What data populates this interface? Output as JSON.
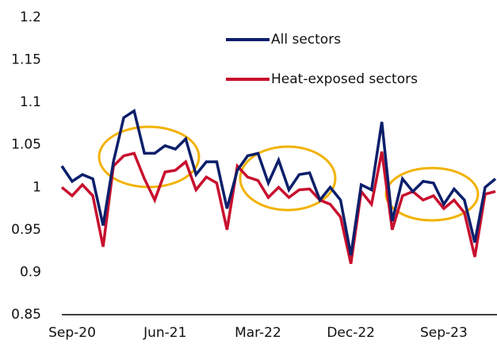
{
  "chart_data": {
    "type": "line",
    "categories": [
      null,
      "Sep-20",
      null,
      null,
      null,
      null,
      null,
      null,
      null,
      null,
      "Jun-21",
      null,
      null,
      null,
      null,
      null,
      null,
      null,
      null,
      "Mar-22",
      null,
      null,
      null,
      null,
      null,
      null,
      null,
      null,
      "Dec-22",
      null,
      null,
      null,
      null,
      null,
      null,
      null,
      null,
      "Sep-23",
      null,
      null,
      null,
      null,
      null
    ],
    "series": [
      {
        "name": "All sectors",
        "color": "#0c1f6b",
        "values": [
          1.025,
          1.007,
          1.015,
          1.01,
          0.955,
          1.03,
          1.082,
          1.09,
          1.04,
          1.04,
          1.049,
          1.045,
          1.057,
          1.015,
          1.03,
          1.03,
          0.975,
          1.02,
          1.037,
          1.04,
          1.005,
          1.032,
          0.997,
          1.015,
          1.017,
          0.985,
          1.0,
          0.985,
          0.92,
          1.003,
          0.997,
          1.077,
          0.96,
          1.01,
          0.995,
          1.007,
          1.005,
          0.98,
          0.998,
          0.985,
          0.935,
          1.0,
          1.01
        ]
      },
      {
        "name": "Heat-exposed sectors",
        "color": "#c8102e",
        "values": [
          1.0,
          0.99,
          1.003,
          0.99,
          0.93,
          1.025,
          1.037,
          1.04,
          1.01,
          0.985,
          1.018,
          1.02,
          1.03,
          0.997,
          1.012,
          1.005,
          0.95,
          1.025,
          1.012,
          1.008,
          0.988,
          1.0,
          0.988,
          0.997,
          0.998,
          0.985,
          0.98,
          0.965,
          0.91,
          0.995,
          0.98,
          1.042,
          0.95,
          0.99,
          0.995,
          0.985,
          0.99,
          0.975,
          0.985,
          0.97,
          0.918,
          0.992,
          0.995
        ]
      }
    ],
    "ylim": [
      0.85,
      1.2
    ],
    "yticks": [
      0.85,
      0.9,
      0.95,
      1,
      1.05,
      1.1,
      1.15,
      1.2
    ],
    "grid": false
  }
}
